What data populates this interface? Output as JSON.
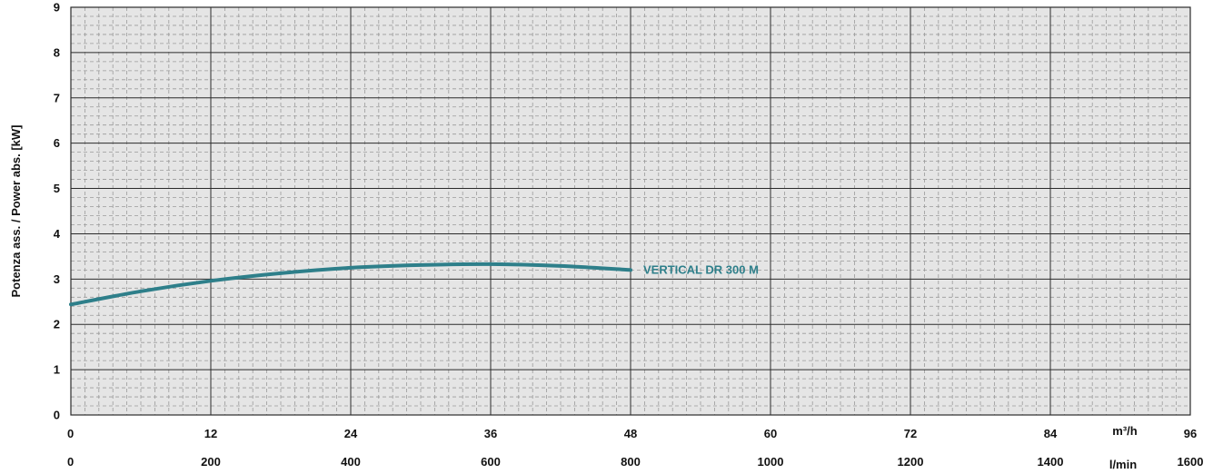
{
  "chart_data": {
    "type": "line",
    "ylabel": "Potenza ass. / Power abs. [kW]",
    "ylim": [
      0,
      9
    ],
    "yticks": [
      "0",
      "1",
      "2",
      "3",
      "4",
      "5",
      "6",
      "7",
      "8",
      "9"
    ],
    "x_primary": {
      "unit": "m³/h",
      "lim": [
        0,
        96
      ],
      "ticks": [
        "0",
        "12",
        "24",
        "36",
        "48",
        "60",
        "72",
        "84",
        "96"
      ]
    },
    "x_secondary": {
      "unit": "l/min",
      "lim": [
        0,
        1600
      ],
      "ticks": [
        "0",
        "200",
        "400",
        "600",
        "800",
        "1000",
        "1200",
        "1400",
        "1600"
      ]
    },
    "grid": true,
    "series": [
      {
        "name": "VERTICAL DR 300 M",
        "color": "#2e7f8a",
        "x": [
          0,
          6,
          12,
          18,
          24,
          30,
          36,
          42,
          48
        ],
        "y": [
          2.44,
          2.73,
          2.96,
          3.13,
          3.25,
          3.31,
          3.33,
          3.29,
          3.2
        ]
      }
    ]
  },
  "colors": {
    "plot_bg": "#e5e5e5",
    "major_grid": "#2b2b2b",
    "minor_grid": "#9a9a9a"
  }
}
